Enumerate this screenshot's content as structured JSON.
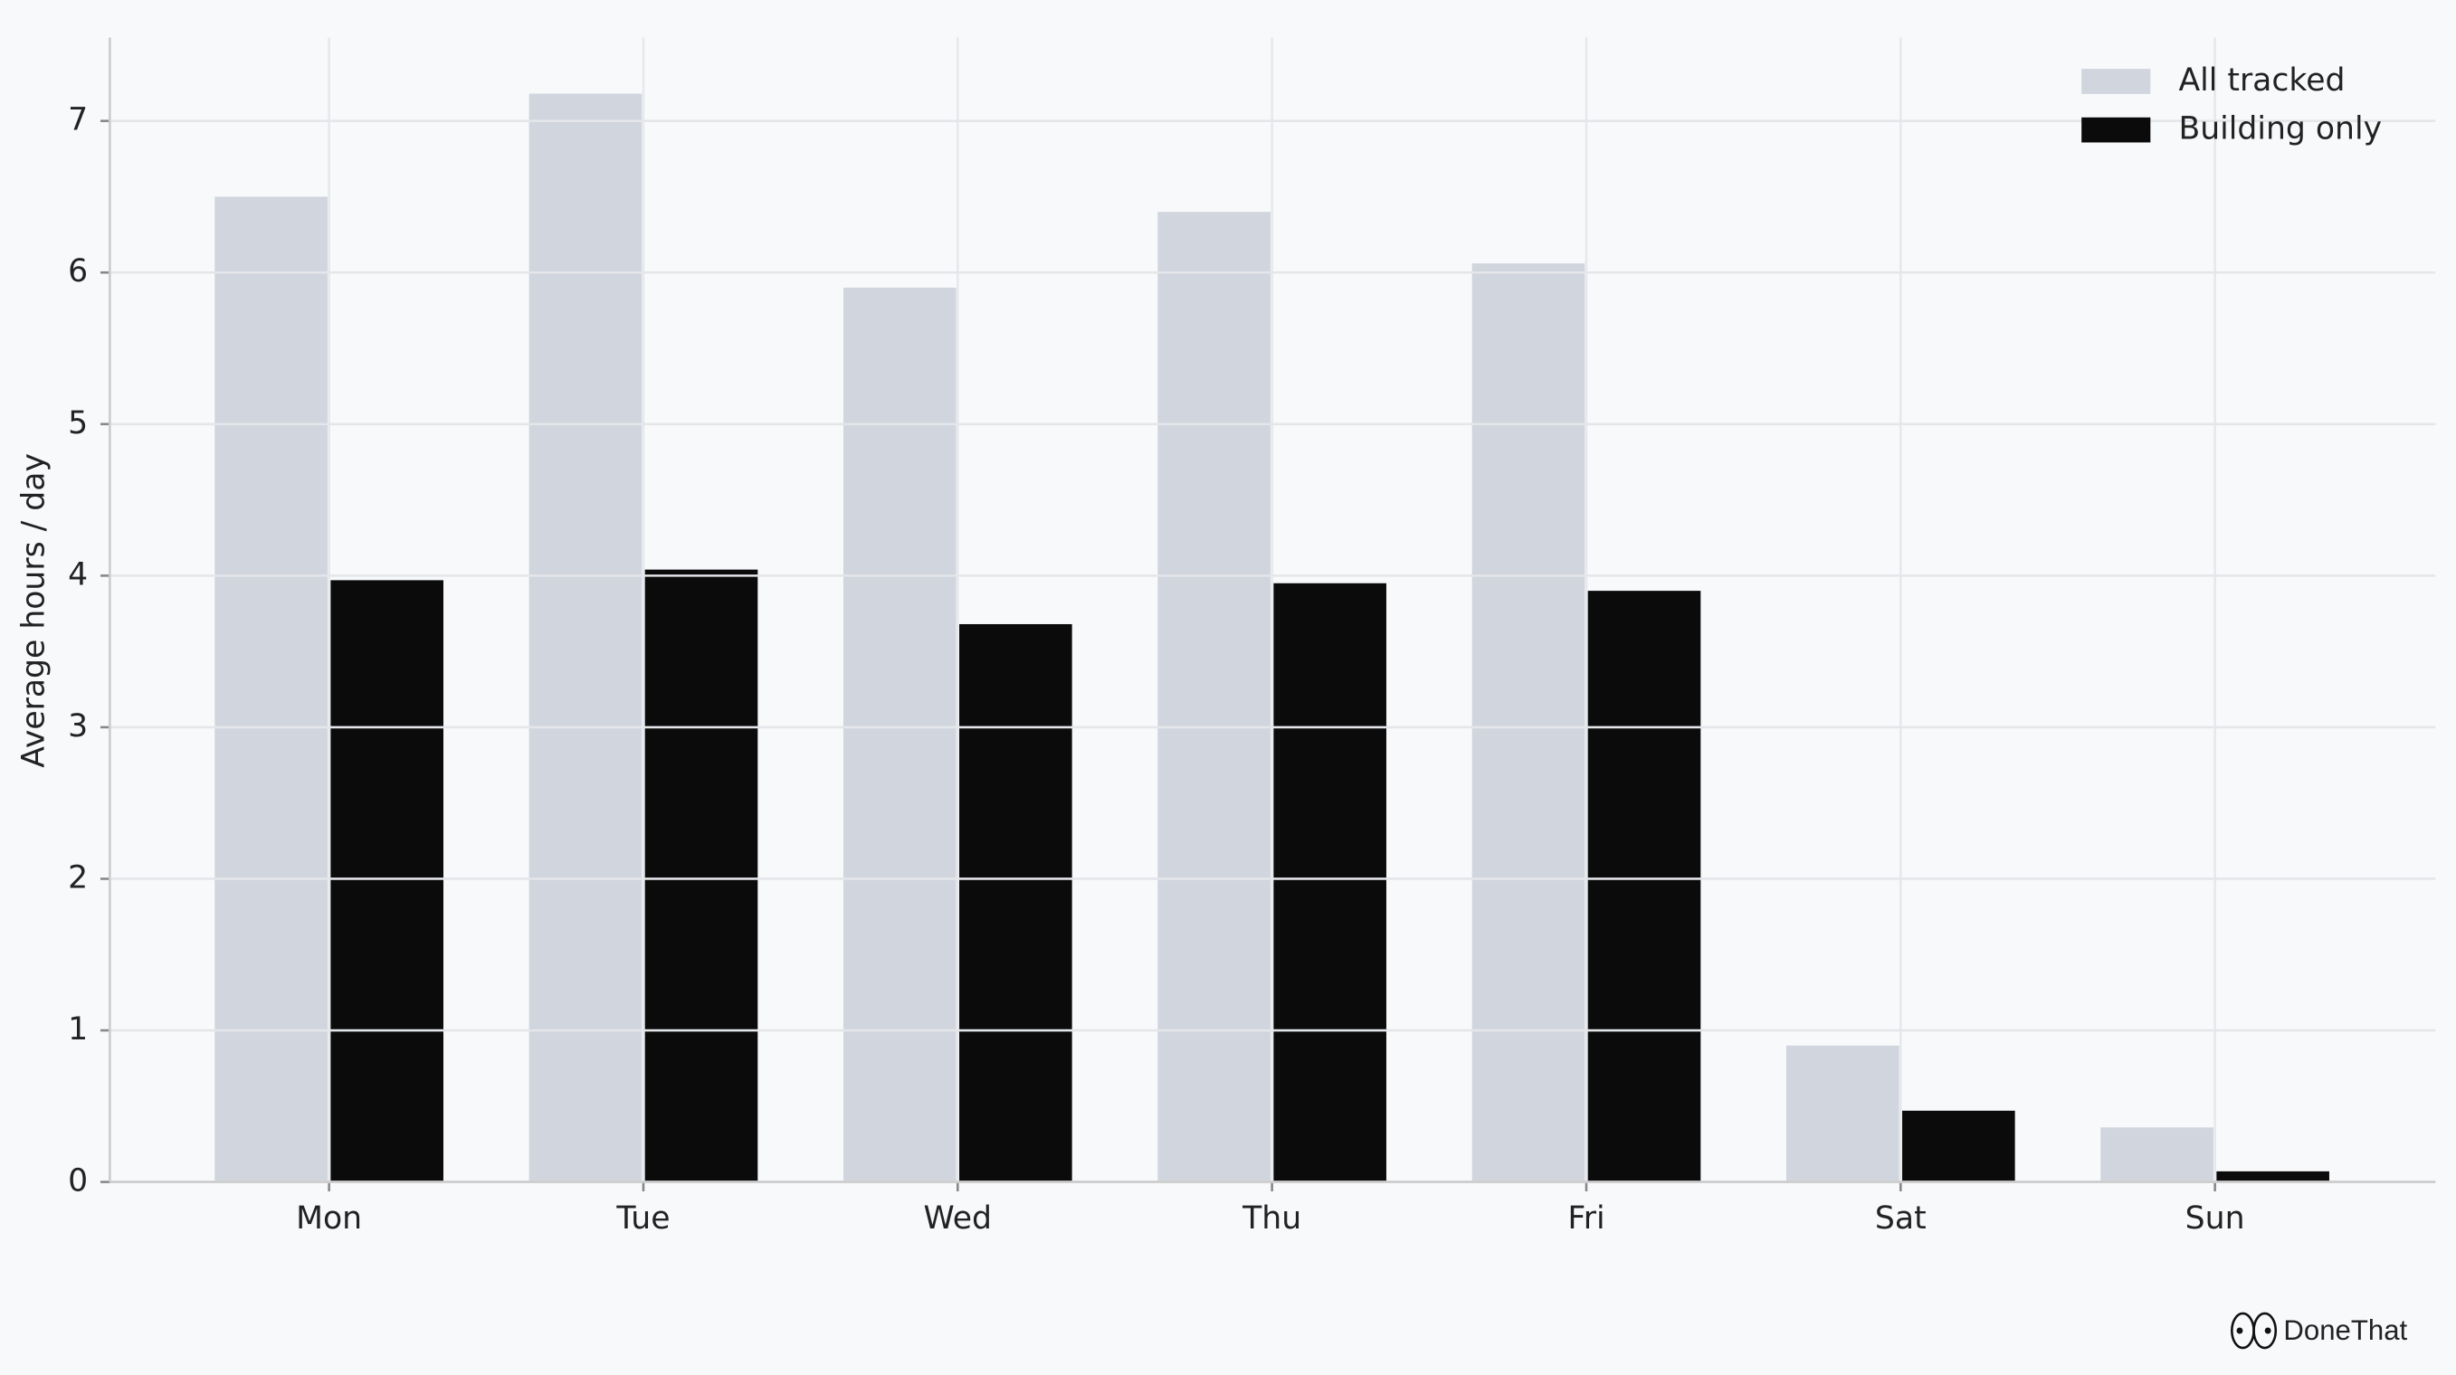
{
  "chart_data": {
    "type": "bar",
    "y_label": "Average hours / day",
    "categories": [
      "Mon",
      "Tue",
      "Wed",
      "Thu",
      "Fri",
      "Sat",
      "Sun"
    ],
    "series": [
      {
        "name": "All tracked",
        "color": "#d0d5de",
        "values": [
          6.5,
          7.18,
          5.9,
          6.4,
          6.06,
          0.9,
          0.36
        ]
      },
      {
        "name": "Building only",
        "color": "#0b0b0b",
        "values": [
          3.97,
          4.04,
          3.68,
          3.95,
          3.9,
          0.47,
          0.07
        ]
      }
    ],
    "ylim": [
      0,
      7.55
    ],
    "yticks": [
      0,
      1,
      2,
      3,
      4,
      5,
      6,
      7
    ],
    "grid": true,
    "legend": "upper-right",
    "watermark": "DoneThat"
  }
}
